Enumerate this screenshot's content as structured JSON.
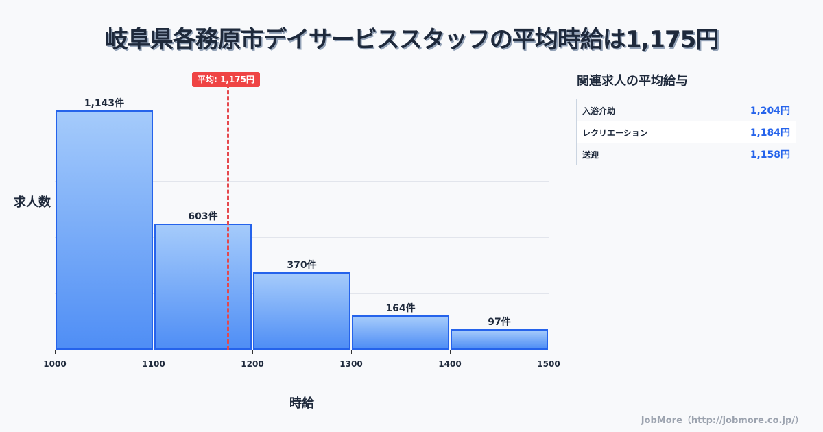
{
  "title": "岐阜県各務原市デイサービススタッフの平均時給は1,175円",
  "chart_data": {
    "type": "bar",
    "title": "岐阜県各務原市デイサービススタッフの平均時給は1,175円",
    "xlabel": "時給",
    "ylabel": "求人数",
    "x_ticks": [
      "1000",
      "1100",
      "1200",
      "1300",
      "1400",
      "1500"
    ],
    "bins": [
      [
        1000,
        1100
      ],
      [
        1100,
        1200
      ],
      [
        1200,
        1300
      ],
      [
        1300,
        1400
      ],
      [
        1400,
        1500
      ]
    ],
    "values": [
      1143,
      603,
      370,
      164,
      97
    ],
    "value_labels": [
      "1,143件",
      "603件",
      "370件",
      "164件",
      "97件"
    ],
    "average": 1175,
    "average_label": "平均: 1,175円",
    "grid": true,
    "colors": {
      "bar_border": "#2563eb",
      "bar_top": "#a5cbfb",
      "bar_bottom": "#4f8ef5",
      "average": "#ef4444"
    }
  },
  "side_panel": {
    "title": "関連求人の平均給与",
    "rows": [
      {
        "name": "入浴介助",
        "value": "1,204円"
      },
      {
        "name": "レクリエーション",
        "value": "1,184円"
      },
      {
        "name": "送迎",
        "value": "1,158円"
      }
    ]
  },
  "footer": "JobMore（http://jobmore.co.jp/）"
}
